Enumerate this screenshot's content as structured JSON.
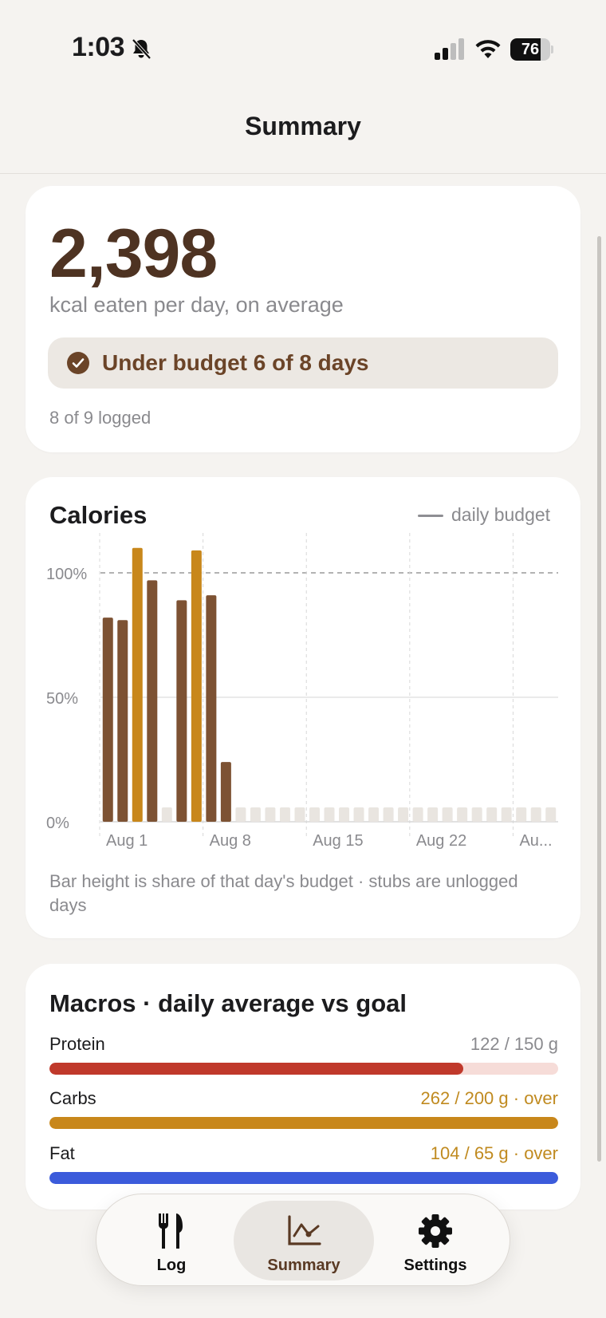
{
  "status_bar": {
    "time": "1:03",
    "battery": "76",
    "battery_level": 0.76
  },
  "nav": {
    "title": "Summary"
  },
  "average_card": {
    "value": "2,398",
    "caption": "kcal eaten per day, on average",
    "budget_status": "Under budget 6 of 8 days",
    "logged": "8 of 9 logged"
  },
  "calories_card": {
    "title": "Calories",
    "legend": "daily budget",
    "note": "Bar height is share of that day's budget · stubs are unlogged days"
  },
  "chart_data": {
    "type": "bar",
    "title": "Calories",
    "ylabel": "",
    "xlabel": "",
    "ylim": [
      0,
      110
    ],
    "y_ticks": [
      "0%",
      "50%",
      "100%"
    ],
    "y_tick_values": [
      0,
      50,
      100
    ],
    "x_ticks": [
      "Aug 1",
      "Aug 8",
      "Aug 15",
      "Aug 22",
      "Au..."
    ],
    "x_tick_indices": [
      0,
      7,
      14,
      21,
      28
    ],
    "reference_line": {
      "label": "daily budget",
      "value": 100
    },
    "days": 31,
    "values": [
      82,
      81,
      110,
      97,
      null,
      89,
      109,
      91,
      24,
      null,
      null,
      null,
      null,
      null,
      null,
      null,
      null,
      null,
      null,
      null,
      null,
      null,
      null,
      null,
      null,
      null,
      null,
      null,
      null,
      null,
      null
    ],
    "over_budget_color": "#c8871b",
    "under_budget_color": "#7d5233",
    "unlogged_color": "#e9e5e0"
  },
  "macros_card": {
    "title": "Macros · daily average vs goal",
    "items": [
      {
        "name": "Protein",
        "value": "122 / 150 g",
        "ratio": 0.813,
        "over": false,
        "color": "#c0392b",
        "track": "#f6dcd8"
      },
      {
        "name": "Carbs",
        "value": "262 / 200 g · over",
        "ratio": 1.0,
        "over": true,
        "color": "#c8871b",
        "track": "#f3e4c8"
      },
      {
        "name": "Fat",
        "value": "104 / 65 g · over",
        "ratio": 1.0,
        "over": true,
        "color": "#3b5bdb",
        "track": "#dbe2f8"
      }
    ]
  },
  "tabs": [
    {
      "label": "Log",
      "icon": "fork-knife-icon"
    },
    {
      "label": "Summary",
      "icon": "chart-line-icon"
    },
    {
      "label": "Settings",
      "icon": "gear-icon"
    }
  ]
}
